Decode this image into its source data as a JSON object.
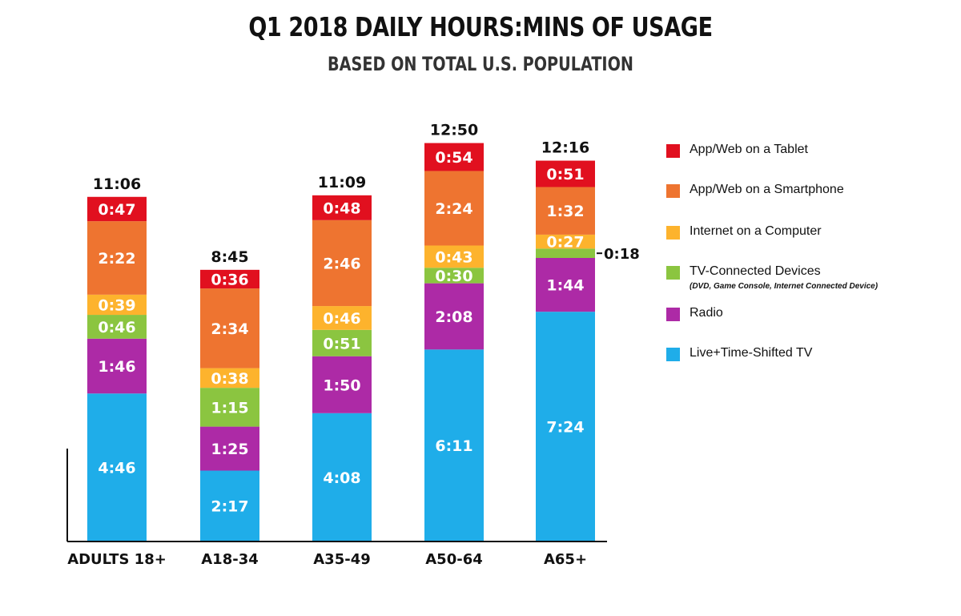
{
  "chart_data": {
    "type": "bar",
    "stacked": true,
    "title": "Q1 2018 DAILY HOURS:MINS OF USAGE",
    "subtitle": "BASED ON TOTAL U.S. POPULATION",
    "categories": [
      "ADULTS 18+",
      "A18-34",
      "A35-49",
      "A50-64",
      "A65+"
    ],
    "totals": [
      "11:06",
      "8:45",
      "11:09",
      "12:50",
      "12:16"
    ],
    "units": "minutes",
    "series": [
      {
        "name": "Live+Time-Shifted TV",
        "color": "#1fade9",
        "values": [
          286,
          137,
          248,
          371,
          444
        ],
        "labels": [
          "4:46",
          "2:17",
          "4:08",
          "6:11",
          "7:24"
        ]
      },
      {
        "name": "Radio",
        "color": "#ad2aa6",
        "values": [
          106,
          85,
          110,
          128,
          104
        ],
        "labels": [
          "1:46",
          "1:25",
          "1:50",
          "2:08",
          "1:44"
        ]
      },
      {
        "name": "TV-Connected Devices",
        "note": "(DVD, Game Console, Internet Connected Device)",
        "color": "#8bc540",
        "values": [
          46,
          75,
          51,
          30,
          18
        ],
        "labels": [
          "0:46",
          "1:15",
          "0:51",
          "0:30",
          "0:18"
        ]
      },
      {
        "name": "Internet on a Computer",
        "color": "#fdb32d",
        "values": [
          39,
          38,
          46,
          43,
          27
        ],
        "labels": [
          "0:39",
          "0:38",
          "0:46",
          "0:43",
          "0:27"
        ]
      },
      {
        "name": "App/Web on a Smartphone",
        "color": "#ee7430",
        "values": [
          142,
          154,
          166,
          144,
          92
        ],
        "labels": [
          "2:22",
          "2:34",
          "2:46",
          "2:24",
          "1:32"
        ]
      },
      {
        "name": "App/Web on a Tablet",
        "color": "#e1101f",
        "values": [
          47,
          36,
          48,
          54,
          51
        ],
        "labels": [
          "0:47",
          "0:36",
          "0:48",
          "0:54",
          "0:51"
        ]
      }
    ],
    "callouts": [
      {
        "category": "A65+",
        "series": "TV-Connected Devices",
        "label": "0:18"
      }
    ],
    "legend": {
      "position": "right",
      "order": [
        "App/Web on a Tablet",
        "App/Web on a Smartphone",
        "Internet on a Computer",
        "TV-Connected Devices",
        "Radio",
        "Live+Time-Shifted TV"
      ]
    },
    "grid": false
  }
}
